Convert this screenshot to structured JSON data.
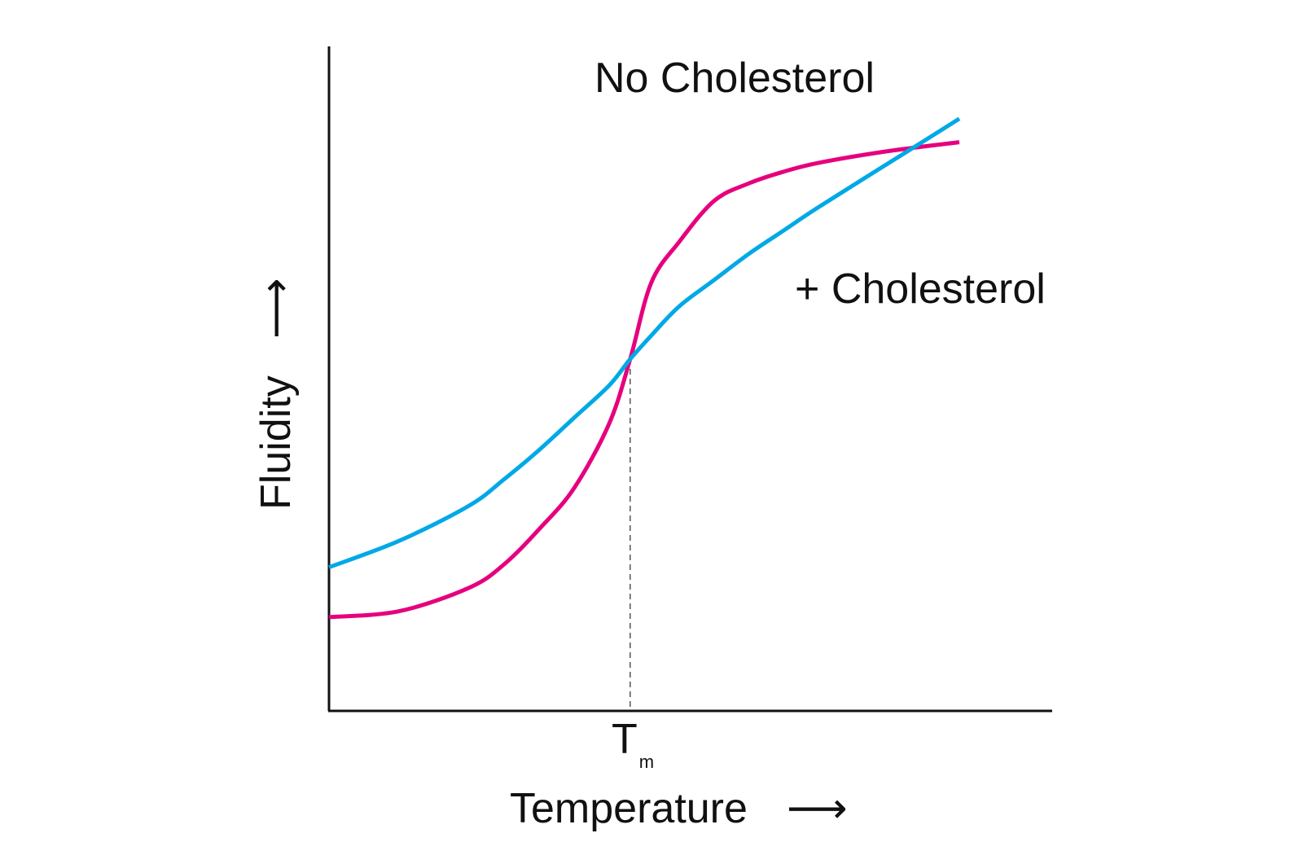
{
  "chart_data": {
    "type": "line",
    "xlabel": "Temperature",
    "ylabel": "Fluidity",
    "x_arrow": "⟶",
    "y_arrow": "⟶",
    "x_marker": {
      "label": "T",
      "subscript": "m",
      "value": 4.3
    },
    "xlim": [
      0,
      10
    ],
    "ylim": [
      0,
      10
    ],
    "grid": false,
    "legend": "none",
    "series": [
      {
        "name": "No Cholesterol",
        "color": "#e6007e",
        "x": [
          0,
          1,
          2,
          2.5,
          3,
          3.5,
          4,
          4.3,
          4.6,
          5,
          5.5,
          6,
          6.5,
          7,
          8,
          9
        ],
        "y": [
          1.6,
          1.7,
          2.1,
          2.5,
          3.1,
          3.8,
          4.9,
          6.0,
          7.3,
          8.0,
          8.7,
          9.0,
          9.2,
          9.35,
          9.55,
          9.7
        ]
      },
      {
        "name": "+ Cholesterol",
        "color": "#00a9e6",
        "x": [
          0,
          1,
          2,
          2.5,
          3,
          3.5,
          4,
          4.3,
          4.6,
          5,
          5.5,
          6,
          6.5,
          7,
          8,
          9
        ],
        "y": [
          2.45,
          2.9,
          3.5,
          3.95,
          4.45,
          5.0,
          5.55,
          6.0,
          6.4,
          6.9,
          7.35,
          7.8,
          8.2,
          8.6,
          9.35,
          10.1
        ]
      }
    ]
  }
}
